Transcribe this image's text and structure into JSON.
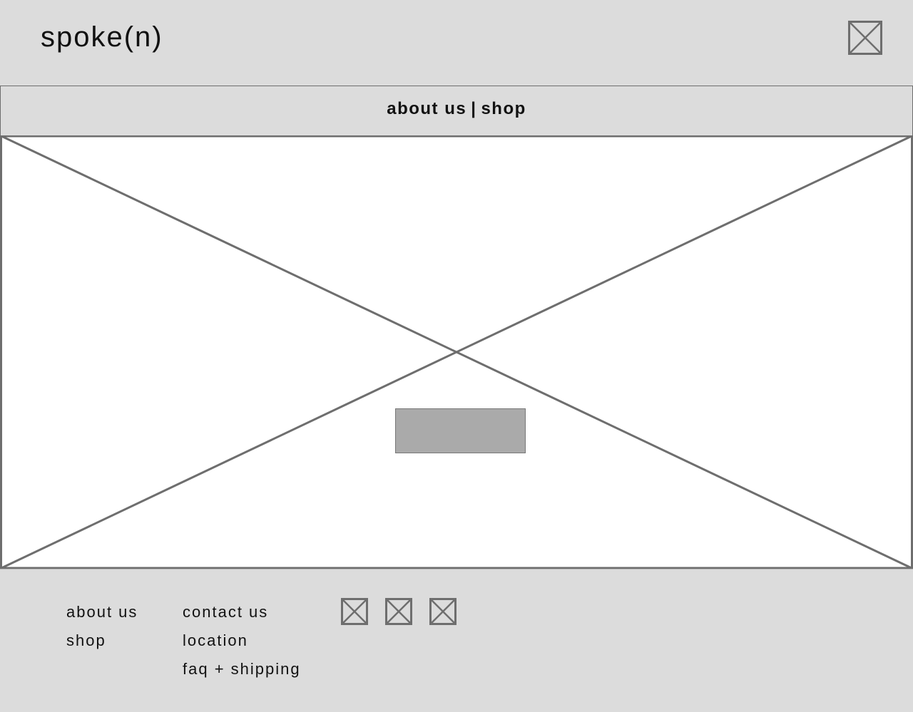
{
  "header": {
    "logo": "spoke(n)",
    "icon": "image-placeholder-icon"
  },
  "nav": {
    "about_label": "about us",
    "separator": "|",
    "shop_label": "shop"
  },
  "hero": {
    "image": "image-placeholder",
    "button_label": ""
  },
  "footer": {
    "col1": [
      "about us",
      "shop"
    ],
    "col2": [
      "contact us",
      "location",
      "faq + shipping"
    ],
    "social_icons": [
      "image-placeholder-icon",
      "image-placeholder-icon",
      "image-placeholder-icon"
    ]
  },
  "colors": {
    "background": "#dcdcdc",
    "placeholder_stroke": "#6e6e6e",
    "hero_fill": "#ffffff",
    "button_fill": "#aaaaaa"
  }
}
